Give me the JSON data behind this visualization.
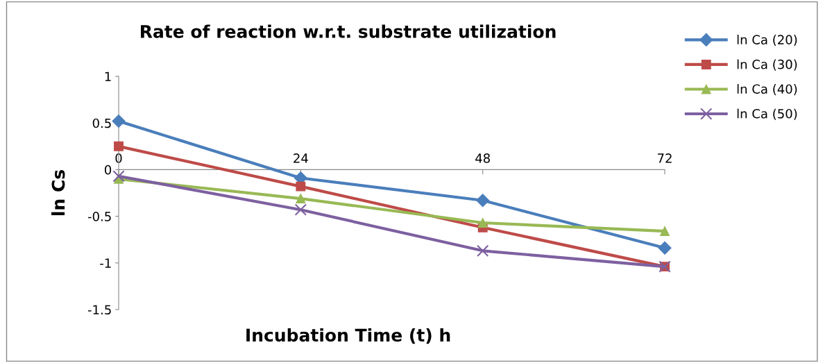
{
  "chart_data": {
    "type": "line",
    "title": "Rate of reaction w.r.t. substrate utilization",
    "xlabel": "Incubation Time (t) h",
    "ylabel": "ln Cs",
    "x": [
      0,
      24,
      48,
      72
    ],
    "series": [
      {
        "name": "ln Ca (20)",
        "color": "#4a7ebb",
        "marker": "diamond",
        "values": [
          0.52,
          -0.09,
          -0.33,
          -0.84
        ]
      },
      {
        "name": "ln Ca (30)",
        "color": "#be4b48",
        "marker": "square",
        "values": [
          0.25,
          -0.18,
          -0.62,
          -1.04
        ]
      },
      {
        "name": "ln Ca (40)",
        "color": "#98b954",
        "marker": "triangle",
        "values": [
          -0.1,
          -0.31,
          -0.57,
          -0.66
        ]
      },
      {
        "name": "ln Ca (50)",
        "color": "#7d60a0",
        "marker": "cross",
        "values": [
          -0.07,
          -0.43,
          -0.87,
          -1.04
        ]
      }
    ],
    "xlim": [
      0,
      72
    ],
    "xticks": [
      0,
      24,
      48,
      72
    ],
    "ylim": [
      -1.5,
      1
    ],
    "yticks": [
      -1.5,
      -1,
      -0.5,
      0,
      0.5,
      1
    ],
    "grid": false,
    "legend": "right",
    "line_style": "solid"
  }
}
